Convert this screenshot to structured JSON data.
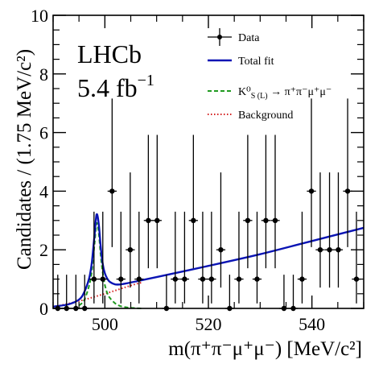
{
  "chart_data": {
    "type": "scatter",
    "title": "",
    "xlabel": "m(π⁺π⁻μ⁺μ⁻) [MeV/c²]",
    "ylabel": "Candidates / (1.75 MeV/c²)",
    "xlim": [
      490,
      550
    ],
    "ylim": [
      0,
      10
    ],
    "x_ticks": [
      500,
      520,
      540
    ],
    "x_tick_labels": [
      "500",
      "520",
      "540"
    ],
    "y_ticks": [
      0,
      2,
      4,
      6,
      8,
      10
    ],
    "y_tick_labels": [
      "0",
      "2",
      "4",
      "6",
      "8",
      "10"
    ],
    "bin_width": 1.75,
    "annotation_lines": [
      "LHCb",
      "5.4 fb"
    ],
    "annotation_superscript": "−1",
    "legend_position": "top-right",
    "legend": [
      {
        "label": "Data",
        "style": "errorbar"
      },
      {
        "label": "Total fit",
        "style": "solid",
        "color": "#0a14b4"
      },
      {
        "label": "K⁰",
        "label_sub": "S (L)",
        "label_rest": " → π⁺π⁻μ⁺μ⁻",
        "style": "dashed",
        "color": "#1f9a1f"
      },
      {
        "label": "Background",
        "style": "dotted",
        "color": "#d42020"
      }
    ],
    "series": [
      {
        "name": "Data",
        "style": "errorbar",
        "x": [
          490.9,
          492.6,
          494.4,
          496.1,
          497.9,
          499.6,
          501.4,
          503.1,
          504.9,
          506.6,
          508.4,
          510.1,
          511.9,
          513.6,
          515.4,
          517.1,
          518.9,
          520.6,
          522.4,
          524.1,
          525.9,
          527.6,
          529.4,
          531.1,
          532.9,
          534.6,
          536.4,
          538.1,
          539.9,
          541.6,
          543.4,
          545.1,
          546.9,
          548.6
        ],
        "y": [
          0,
          0,
          0,
          0,
          1,
          1,
          4,
          1,
          2,
          1,
          3,
          3,
          0,
          1,
          1,
          3,
          1,
          1,
          2,
          0,
          1,
          3,
          1,
          3,
          3,
          0,
          0,
          1,
          4,
          2,
          2,
          2,
          4,
          1
        ],
        "y_err_low": [
          0,
          0,
          0,
          0,
          0.83,
          0.83,
          1.91,
          0.83,
          1.29,
          0.83,
          1.63,
          1.63,
          0,
          0.83,
          0.83,
          1.63,
          0.83,
          0.83,
          1.29,
          0,
          0.83,
          1.63,
          0.83,
          1.63,
          1.63,
          0,
          0,
          0.83,
          1.91,
          1.29,
          1.29,
          1.29,
          1.91,
          0.83
        ],
        "y_err_high": [
          1.15,
          1.15,
          1.15,
          1.15,
          2.3,
          2.3,
          3.16,
          2.3,
          2.64,
          2.3,
          2.92,
          2.92,
          1.15,
          2.3,
          2.3,
          2.92,
          2.3,
          2.3,
          2.64,
          1.15,
          2.3,
          2.92,
          2.3,
          2.92,
          2.92,
          1.15,
          1.15,
          2.3,
          3.16,
          2.64,
          2.64,
          2.64,
          3.16,
          2.3
        ]
      },
      {
        "name": "Total fit",
        "style": "solid",
        "color": "#0a14b4",
        "x": [
          490,
          493,
          495,
          496,
          497,
          497.5,
          498,
          498.4,
          498.8,
          499.2,
          499.6,
          500,
          500.5,
          501,
          502,
          503,
          504,
          506,
          510,
          520,
          530,
          540,
          550
        ],
        "y": [
          0.06,
          0.14,
          0.3,
          0.55,
          1.05,
          1.6,
          2.5,
          3.2,
          2.9,
          2.1,
          1.5,
          1.2,
          1.0,
          0.9,
          0.82,
          0.82,
          0.85,
          0.92,
          1.07,
          1.45,
          1.85,
          2.3,
          2.75
        ]
      },
      {
        "name": "K0S(L) → π+π−μ+μ−",
        "style": "dashed",
        "color": "#1f9a1f",
        "x": [
          495,
          496,
          497,
          497.5,
          498,
          498.4,
          498.8,
          499.2,
          499.6,
          500,
          500.5,
          501,
          502,
          503,
          504,
          505,
          506,
          507
        ],
        "y": [
          0.1,
          0.28,
          0.8,
          1.3,
          2.2,
          2.9,
          2.6,
          1.8,
          1.2,
          0.8,
          0.5,
          0.35,
          0.17,
          0.08,
          0.04,
          0.02,
          0.01,
          0.0
        ]
      },
      {
        "name": "Background",
        "style": "dotted",
        "color": "#d42020",
        "x": [
          490,
          495,
          500,
          505,
          507
        ],
        "y": [
          0.05,
          0.25,
          0.5,
          0.78,
          0.88
        ]
      }
    ]
  }
}
